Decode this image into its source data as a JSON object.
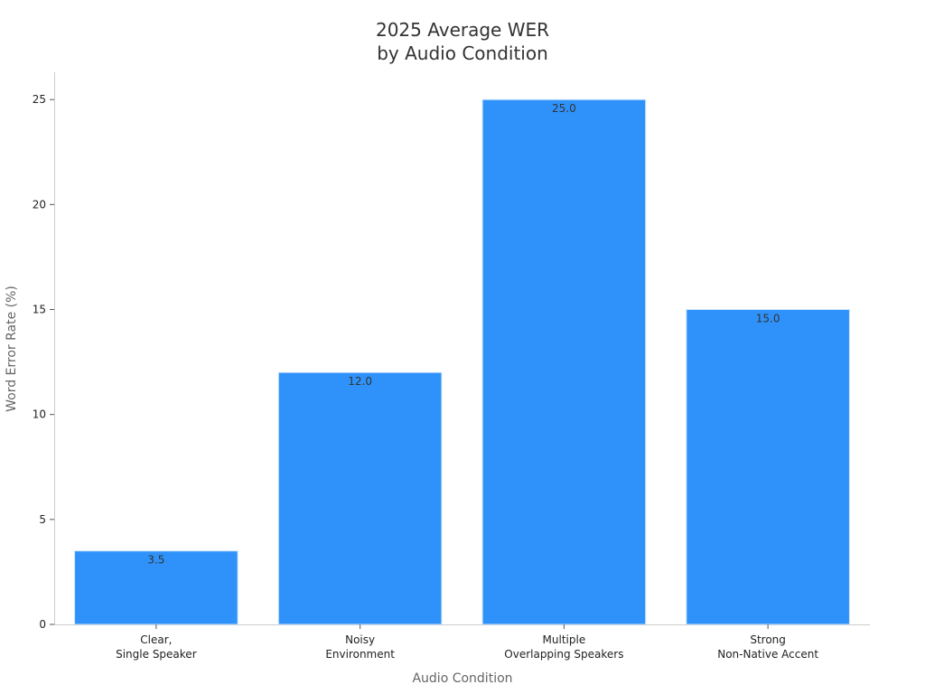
{
  "chart_data": {
    "type": "bar",
    "title_lines": [
      "2025 Average WER",
      "by Audio Condition"
    ],
    "xlabel": "Audio Condition",
    "ylabel": "Word Error Rate (%)",
    "categories": [
      [
        "Clear,",
        "Single Speaker"
      ],
      [
        "Noisy",
        "Environment"
      ],
      [
        "Multiple",
        "Overlapping Speakers"
      ],
      [
        "Strong",
        "Non-Native Accent"
      ]
    ],
    "values": [
      3.5,
      12.0,
      25.0,
      15.0
    ],
    "data_labels": [
      "3.5",
      "12.0",
      "25.0",
      "15.0"
    ],
    "ylim": [
      0,
      26.3
    ],
    "yticks": [
      0,
      5,
      10,
      15,
      20,
      25
    ],
    "grid": false,
    "bar_color": "#2F92FA",
    "bar_edge_color": "#CFE4FB"
  }
}
